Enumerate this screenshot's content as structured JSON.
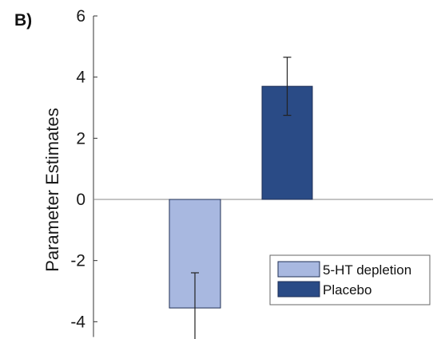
{
  "panel_label": "B)",
  "chart_data": {
    "type": "bar",
    "title": "",
    "xlabel": "",
    "ylabel": "Parameter Estimates",
    "ylim": [
      -4.5,
      6
    ],
    "yticks": [
      6,
      4,
      2,
      0,
      -2,
      -4
    ],
    "grid": false,
    "legend_position": "bottom-right",
    "zero_line": true,
    "series": [
      {
        "name": "5-HT depletion",
        "value": -3.55,
        "error": 1.15,
        "color": "#a8b8e0"
      },
      {
        "name": "Placebo",
        "value": 3.7,
        "error": 0.95,
        "color": "#2a4b86"
      }
    ]
  }
}
